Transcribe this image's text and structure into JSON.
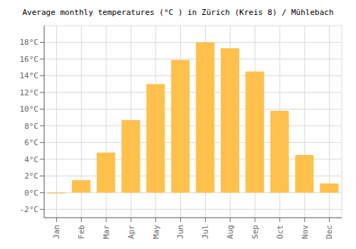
{
  "chart_data": {
    "type": "bar",
    "title": "Average monthly temperatures (°C ) in Zürich (Kreis 8) / Mühlebach",
    "categories": [
      "Jan",
      "Feb",
      "Mar",
      "Apr",
      "May",
      "Jun",
      "Jul",
      "Aug",
      "Sep",
      "Oct",
      "Nov",
      "Dec"
    ],
    "values": [
      -0.1,
      1.5,
      4.8,
      8.7,
      13.0,
      15.9,
      18.0,
      17.3,
      14.5,
      9.8,
      4.5,
      1.1
    ],
    "color": "#FFC04C",
    "ylim": [
      -3.0,
      20.0
    ],
    "yticks": [
      {
        "value": -2,
        "label": "-2°C"
      },
      {
        "value": 0,
        "label": "0°C"
      },
      {
        "value": 2,
        "label": "2°C"
      },
      {
        "value": 4,
        "label": "4°C"
      },
      {
        "value": 6,
        "label": "6°C"
      },
      {
        "value": 8,
        "label": "8°C"
      },
      {
        "value": 10,
        "label": "10°C"
      },
      {
        "value": 12,
        "label": "12°C"
      },
      {
        "value": 14,
        "label": "14°C"
      },
      {
        "value": 16,
        "label": "16°C"
      },
      {
        "value": 18,
        "label": "18°C"
      }
    ],
    "grid": true
  }
}
